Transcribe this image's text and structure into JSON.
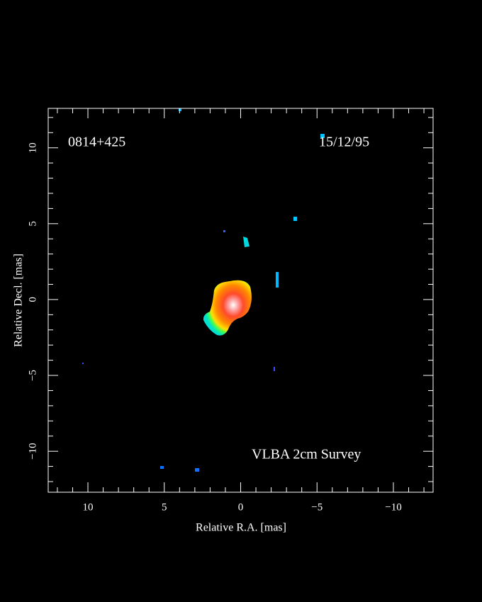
{
  "chart_data": {
    "type": "image",
    "annotations": [
      "0814+425",
      "15/12/95",
      "VLBA 2cm Survey"
    ],
    "xlabel": "Relative R.A. [mas]",
    "ylabel": "Relative Decl. [mas]",
    "xlim": [
      12.6,
      -12.6
    ],
    "ylim": [
      -12.7,
      12.6
    ],
    "xticks": [
      10,
      5,
      0,
      {
        "value": -5,
        "label": "−5"
      },
      {
        "value": -10,
        "label": "−10"
      }
    ],
    "yticks": [
      {
        "value": -10,
        "label": "−10"
      },
      {
        "value": -5,
        "label": "−5"
      },
      0,
      5,
      10
    ]
  }
}
